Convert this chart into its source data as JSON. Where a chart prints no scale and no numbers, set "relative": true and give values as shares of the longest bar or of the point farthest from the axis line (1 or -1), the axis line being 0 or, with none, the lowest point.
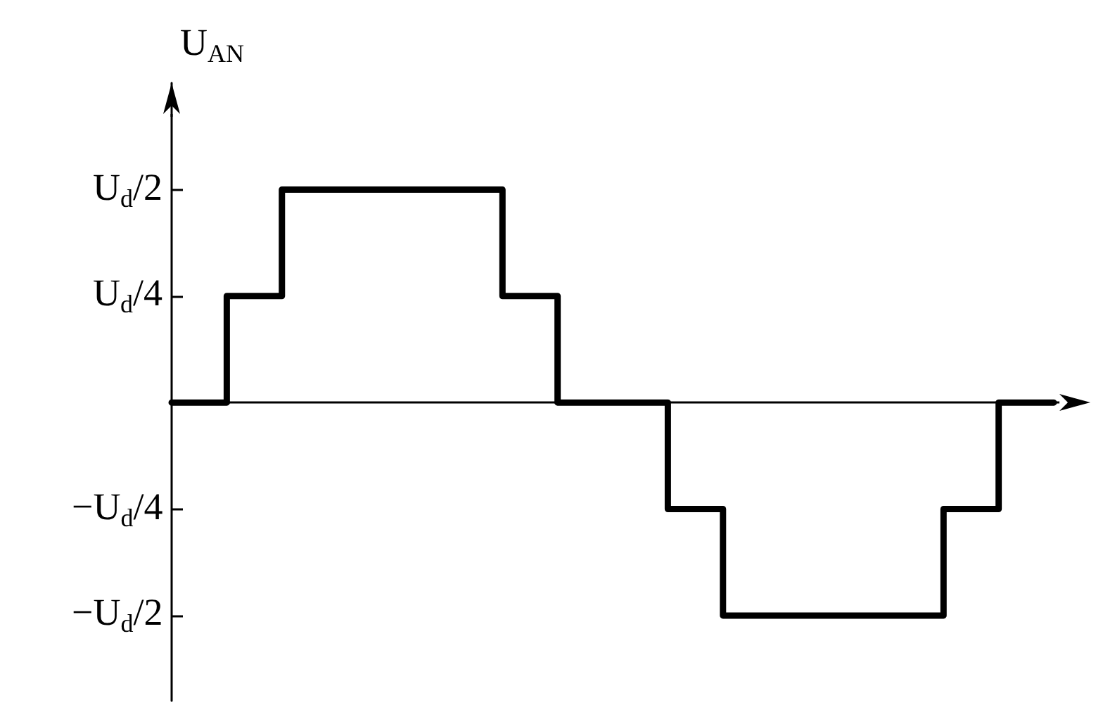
{
  "chart_data": {
    "type": "step",
    "ylabel": "U$_{AN}$",
    "categories": [
      null,
      null,
      null,
      null,
      null,
      null,
      null,
      null,
      null,
      null,
      null,
      null,
      null,
      null,
      null,
      null,
      null
    ],
    "series": [
      {
        "color": "#000000",
        "values": [
          0,
          0.5,
          1,
          1,
          1,
          1,
          0.5,
          0,
          0,
          -0.5,
          -1,
          -1,
          -1,
          -1,
          -0.5,
          0,
          0
        ]
      }
    ],
    "relative": true,
    "annotations": [
      "U$_{d}$/2",
      "U$_{d}$/4",
      "−U$_{d}$/4",
      "−U$_{d}$/2"
    ],
    "grid": false,
    "marker": "none",
    "line_style": "solid"
  }
}
